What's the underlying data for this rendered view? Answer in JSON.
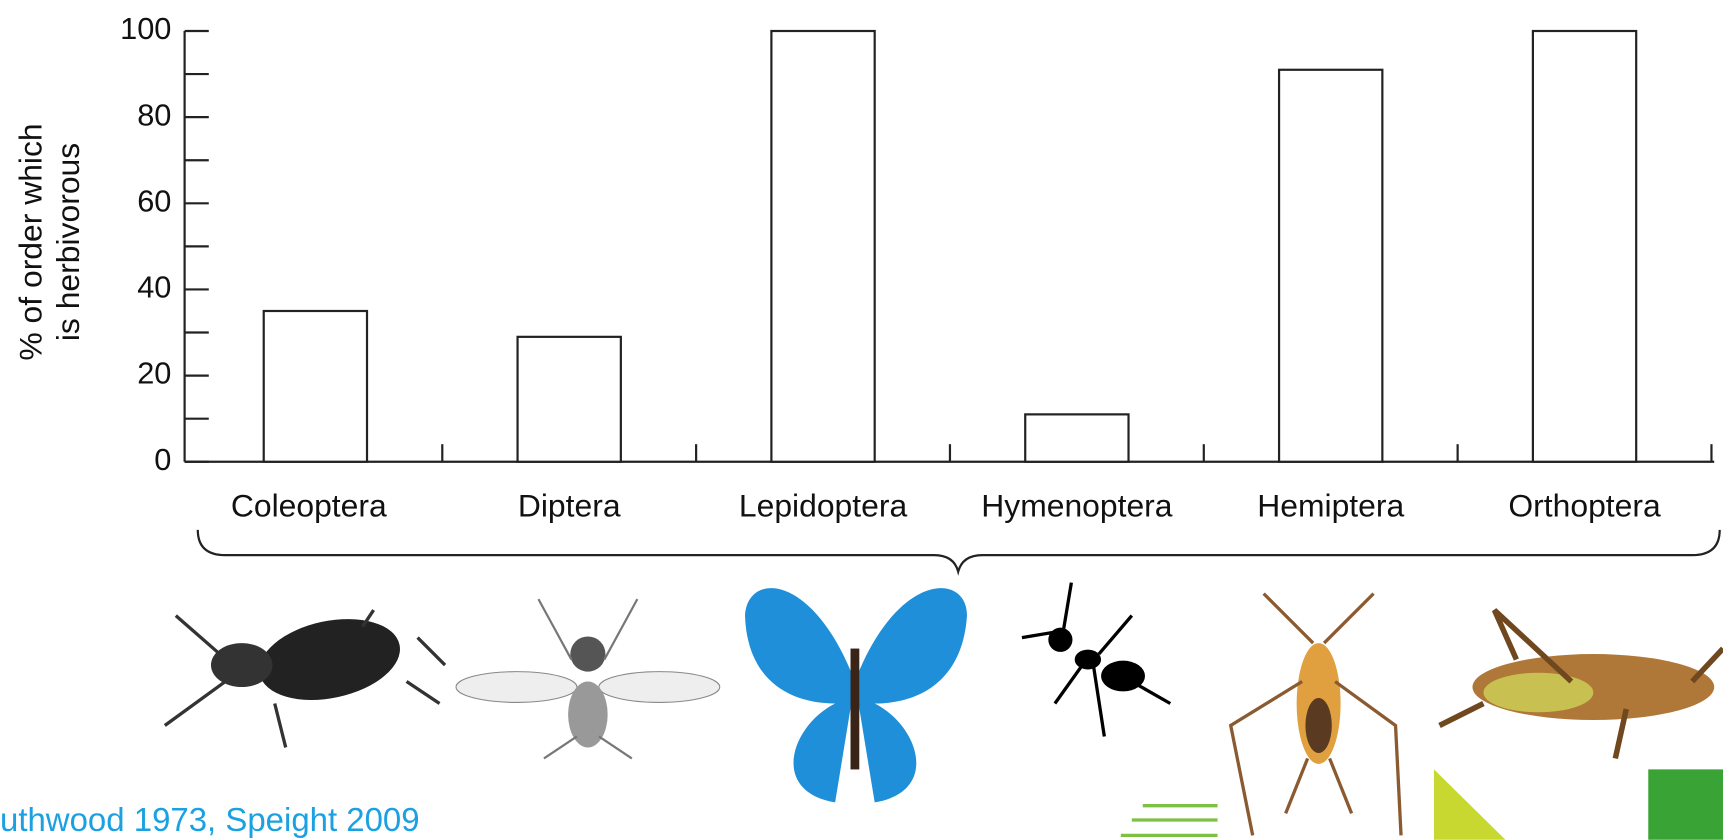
{
  "chart_data": {
    "type": "bar",
    "y_label_lines": [
      "% of order which",
      "is herbivorous"
    ],
    "categories": [
      "Coleoptera",
      "Diptera",
      "Lepidoptera",
      "Hymenoptera",
      "Hemiptera",
      "Orthoptera"
    ],
    "values": [
      35,
      29,
      100,
      11,
      91,
      100
    ],
    "color": "#ffffff",
    "ylim": [
      0,
      100
    ],
    "yticks": [
      0,
      20,
      40,
      60,
      80,
      100
    ],
    "yminorticks": [
      10,
      30,
      50,
      70,
      90
    ],
    "grid": false
  },
  "footer": {
    "citation": "uthwood 1973, Speight 2009"
  }
}
